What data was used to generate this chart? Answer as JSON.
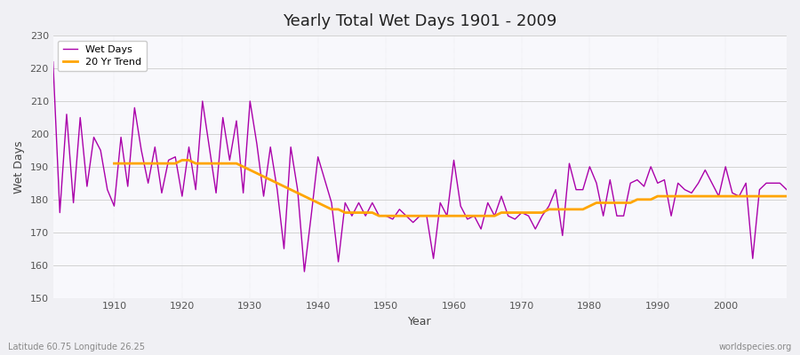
{
  "title": "Yearly Total Wet Days 1901 - 2009",
  "xlabel": "Year",
  "ylabel": "Wet Days",
  "footnote_left": "Latitude 60.75 Longitude 26.25",
  "footnote_right": "worldspecies.org",
  "ylim": [
    150,
    230
  ],
  "yticks": [
    150,
    160,
    170,
    180,
    190,
    200,
    210,
    220,
    230
  ],
  "wet_days_color": "#AA00AA",
  "trend_color": "#FFA500",
  "bg_color": "#F0F0F4",
  "plot_bg": "#F8F8FC",
  "years": [
    1901,
    1902,
    1903,
    1904,
    1905,
    1906,
    1907,
    1908,
    1909,
    1910,
    1911,
    1912,
    1913,
    1914,
    1915,
    1916,
    1917,
    1918,
    1919,
    1920,
    1921,
    1922,
    1923,
    1924,
    1925,
    1926,
    1927,
    1928,
    1929,
    1930,
    1931,
    1932,
    1933,
    1934,
    1935,
    1936,
    1937,
    1938,
    1939,
    1940,
    1941,
    1942,
    1943,
    1944,
    1945,
    1946,
    1947,
    1948,
    1949,
    1950,
    1951,
    1952,
    1953,
    1954,
    1955,
    1956,
    1957,
    1958,
    1959,
    1960,
    1961,
    1962,
    1963,
    1964,
    1965,
    1966,
    1967,
    1968,
    1969,
    1970,
    1971,
    1972,
    1973,
    1974,
    1975,
    1976,
    1977,
    1978,
    1979,
    1980,
    1981,
    1982,
    1983,
    1984,
    1985,
    1986,
    1987,
    1988,
    1989,
    1990,
    1991,
    1992,
    1993,
    1994,
    1995,
    1996,
    1997,
    1998,
    1999,
    2000,
    2001,
    2002,
    2003,
    2004,
    2005,
    2006,
    2007,
    2008,
    2009
  ],
  "wet_days": [
    222,
    176,
    206,
    179,
    205,
    184,
    199,
    195,
    183,
    178,
    199,
    184,
    208,
    195,
    185,
    196,
    182,
    192,
    193,
    181,
    196,
    183,
    210,
    196,
    182,
    205,
    192,
    204,
    182,
    210,
    197,
    181,
    196,
    183,
    165,
    196,
    183,
    158,
    175,
    193,
    186,
    179,
    161,
    179,
    175,
    179,
    175,
    179,
    175,
    175,
    174,
    177,
    175,
    173,
    175,
    175,
    162,
    179,
    175,
    192,
    178,
    174,
    175,
    171,
    179,
    175,
    181,
    175,
    174,
    176,
    175,
    171,
    175,
    178,
    183,
    169,
    191,
    183,
    183,
    190,
    185,
    175,
    186,
    175,
    175,
    185,
    186,
    184,
    190,
    185,
    186,
    175,
    185,
    183,
    182,
    185,
    189,
    185,
    181,
    190,
    182,
    181,
    185,
    162,
    183,
    185,
    185,
    185,
    183
  ],
  "trend_values": [
    null,
    null,
    null,
    null,
    null,
    null,
    null,
    null,
    null,
    191,
    191,
    191,
    191,
    191,
    191,
    191,
    191,
    191,
    191,
    192,
    192,
    191,
    191,
    191,
    191,
    191,
    191,
    191,
    190,
    189,
    188,
    187,
    186,
    185,
    184,
    183,
    182,
    181,
    180,
    179,
    178,
    177,
    177,
    176,
    176,
    176,
    176,
    176,
    175,
    175,
    175,
    175,
    175,
    175,
    175,
    175,
    175,
    175,
    175,
    175,
    175,
    175,
    175,
    175,
    175,
    175,
    176,
    176,
    176,
    176,
    176,
    176,
    176,
    177,
    177,
    177,
    177,
    177,
    177,
    178,
    179,
    179,
    179,
    179,
    179,
    179,
    180,
    180,
    180,
    181,
    181,
    181,
    181,
    181,
    181,
    181,
    181,
    181,
    181,
    181,
    181,
    181,
    181,
    181,
    181,
    181,
    181,
    181,
    181
  ]
}
